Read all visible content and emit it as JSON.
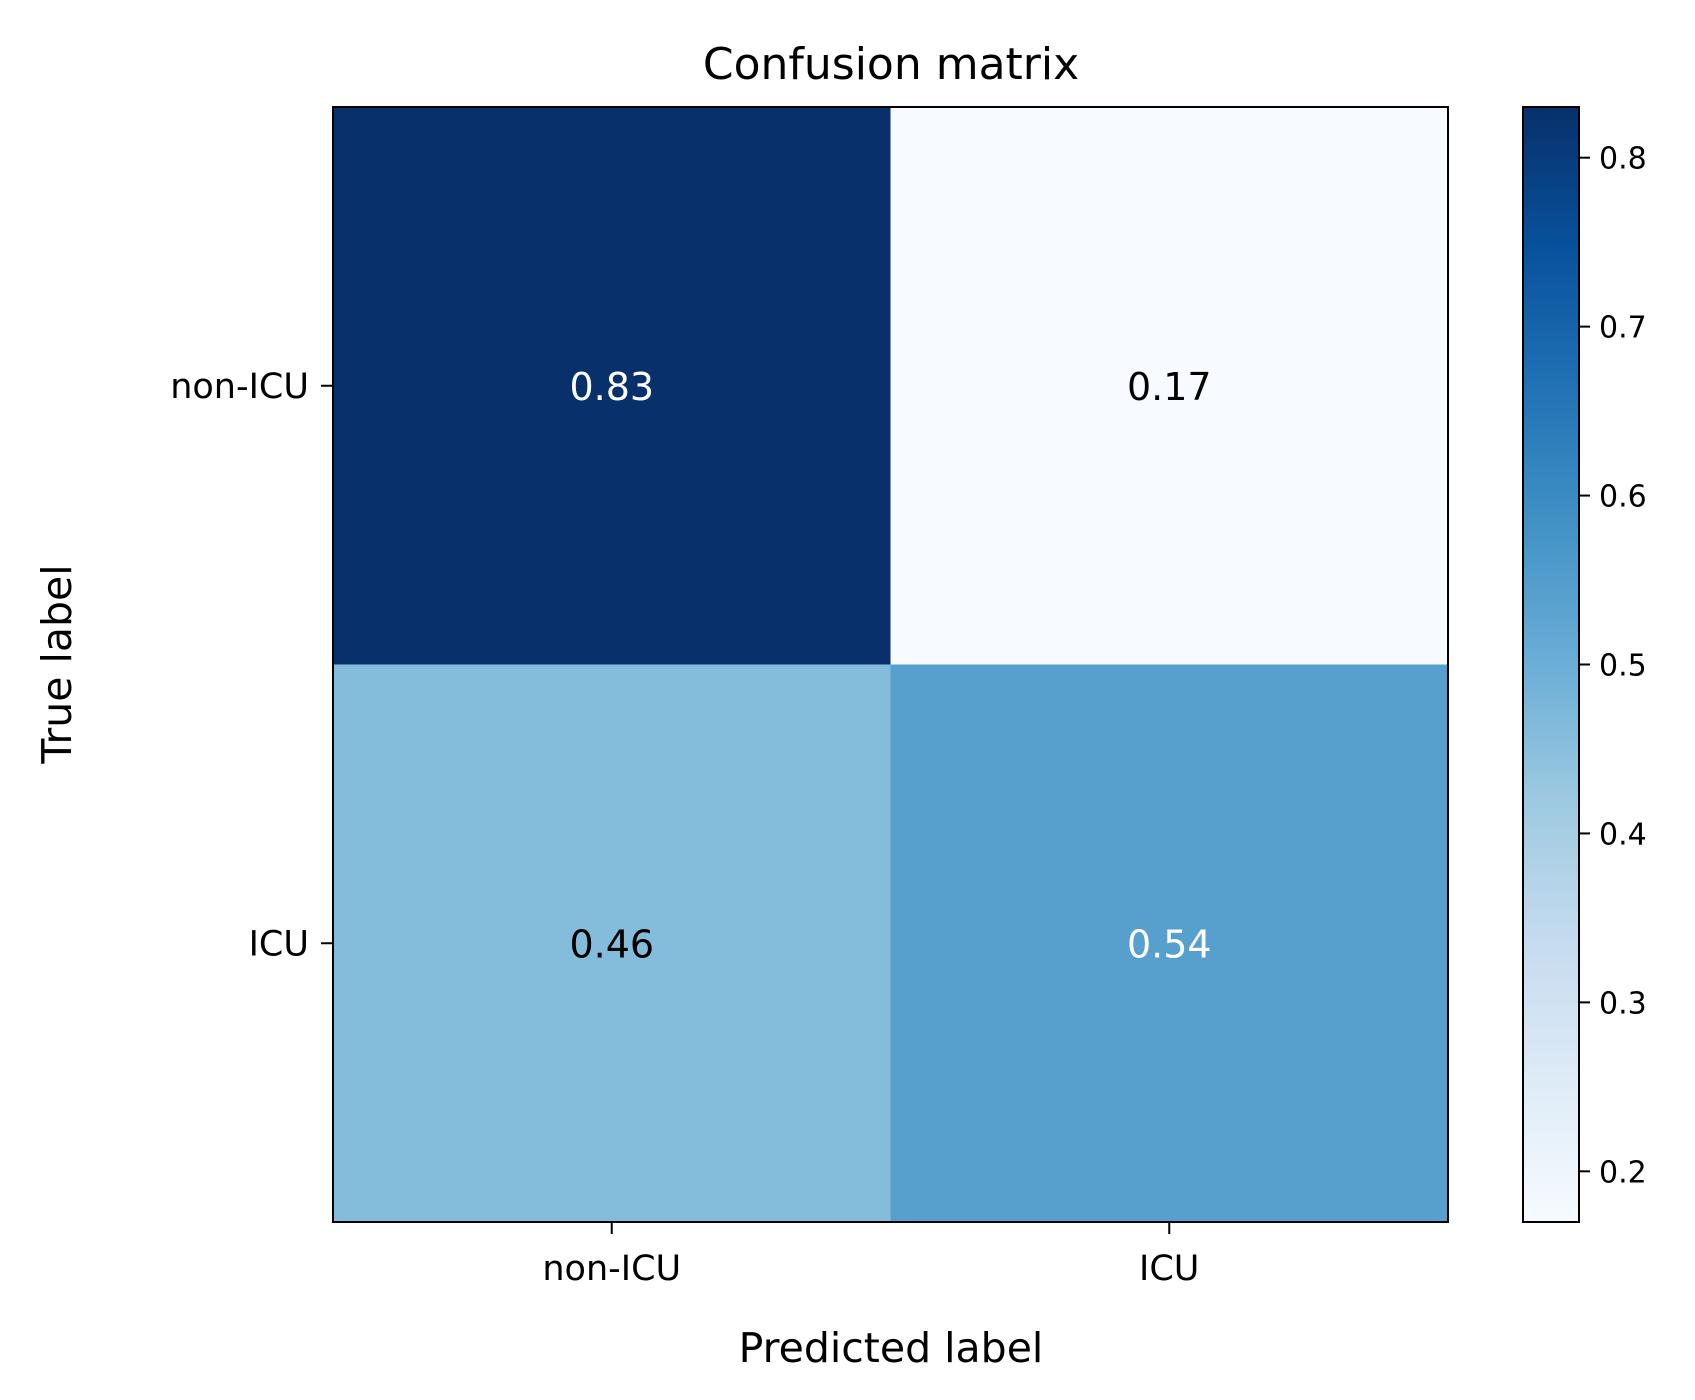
{
  "chart_data": {
    "type": "heatmap",
    "title": "Confusion matrix",
    "xlabel": "Predicted label",
    "ylabel": "True label",
    "x_categories": [
      "non-ICU",
      "ICU"
    ],
    "y_categories": [
      "non-ICU",
      "ICU"
    ],
    "values": [
      [
        0.83,
        0.17
      ],
      [
        0.46,
        0.54
      ]
    ],
    "value_labels": [
      [
        "0.83",
        "0.17"
      ],
      [
        "0.46",
        "0.54"
      ]
    ],
    "colormap": "Blues",
    "colorbar": {
      "range": [
        0.17,
        0.83
      ],
      "ticks": [
        0.2,
        0.3,
        0.4,
        0.5,
        0.6,
        0.7,
        0.8
      ],
      "tick_labels": [
        "0.2",
        "0.3",
        "0.4",
        "0.5",
        "0.6",
        "0.7",
        "0.8"
      ]
    },
    "grid": false
  }
}
